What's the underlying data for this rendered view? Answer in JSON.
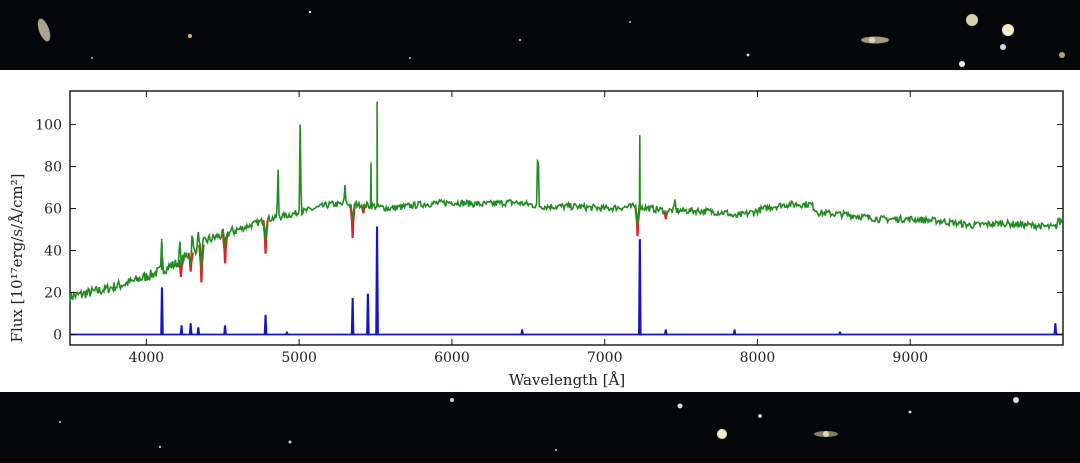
{
  "chart_data": {
    "type": "line",
    "xlabel": "Wavelength [Å]",
    "ylabel": "Flux [10¹⁷erg/s/Å/cm²]",
    "xlim": [
      3500,
      10000
    ],
    "ylim": [
      -5,
      116
    ],
    "x_ticks": [
      4000,
      5000,
      6000,
      7000,
      8000,
      9000
    ],
    "y_ticks": [
      0,
      20,
      40,
      60,
      80,
      100
    ],
    "grid": false,
    "colors": {
      "observed": "#228b22",
      "absorption": "#e02020",
      "emission_model": "#1515c8"
    },
    "series": [
      {
        "key": "observed",
        "color": "#228b22",
        "continuum": [
          [
            3500,
            18
          ],
          [
            3700,
            21
          ],
          [
            3900,
            25
          ],
          [
            4050,
            29
          ],
          [
            4200,
            34
          ],
          [
            4400,
            45
          ],
          [
            4600,
            50
          ],
          [
            4800,
            55
          ],
          [
            5000,
            58
          ],
          [
            5200,
            62
          ],
          [
            5400,
            62
          ],
          [
            5600,
            60
          ],
          [
            5800,
            62
          ],
          [
            6000,
            63
          ],
          [
            6200,
            62
          ],
          [
            6400,
            63
          ],
          [
            6600,
            61
          ],
          [
            6800,
            61
          ],
          [
            7000,
            60
          ],
          [
            7200,
            61
          ],
          [
            7400,
            59
          ],
          [
            7600,
            59
          ],
          [
            7800,
            58
          ],
          [
            7850,
            56
          ],
          [
            8000,
            59
          ],
          [
            8100,
            61
          ],
          [
            8200,
            62
          ],
          [
            8350,
            62
          ],
          [
            8400,
            58
          ],
          [
            8600,
            57
          ],
          [
            8800,
            55
          ],
          [
            9000,
            55
          ],
          [
            9200,
            54
          ],
          [
            9400,
            52
          ],
          [
            9600,
            53
          ],
          [
            9800,
            52
          ],
          [
            9950,
            51
          ],
          [
            10000,
            55
          ]
        ],
        "lines": [
          [
            4102,
            17,
            3
          ],
          [
            4220,
            10,
            4
          ],
          [
            4300,
            8,
            4
          ],
          [
            4340,
            9,
            3
          ],
          [
            4861,
            23,
            3
          ],
          [
            5007,
            46,
            3
          ],
          [
            5300,
            8,
            4
          ],
          [
            6563,
            33,
            3
          ],
          [
            7460,
            5,
            3
          ],
          [
            9968,
            3,
            4
          ]
        ]
      },
      {
        "key": "absorption",
        "color": "#e02020",
        "dips": [
          [
            4226,
            -8
          ],
          [
            4290,
            -9
          ],
          [
            4360,
            -18
          ],
          [
            4515,
            -14
          ],
          [
            4780,
            -16
          ],
          [
            5350,
            -16
          ],
          [
            5420,
            -4
          ],
          [
            7215,
            -14
          ],
          [
            7400,
            -4
          ]
        ]
      },
      {
        "key": "emission_model",
        "color": "#1515c8",
        "baseline": 0,
        "lines": [
          [
            4102,
            22
          ],
          [
            4230,
            4
          ],
          [
            4290,
            5
          ],
          [
            4340,
            3
          ],
          [
            4515,
            4
          ],
          [
            4780,
            9
          ],
          [
            4920,
            1
          ],
          [
            5350,
            17
          ],
          [
            5450,
            19
          ],
          [
            5510,
            51
          ],
          [
            6460,
            2
          ],
          [
            7230,
            45
          ],
          [
            7400,
            2
          ],
          [
            7850,
            2
          ],
          [
            8540,
            1
          ],
          [
            9950,
            5
          ]
        ]
      }
    ]
  }
}
